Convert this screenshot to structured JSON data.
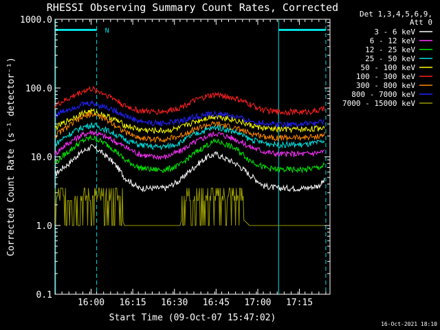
{
  "chart_data": {
    "type": "line",
    "title": "RHESSI Observing Summary Count Rates, Corrected",
    "xlabel": "Start Time (09-Oct-07 15:47:02)",
    "ylabel": "Corrected Count Rate (s⁻¹ detector⁻¹)",
    "yscale": "log",
    "ylim": [
      0.1,
      1000
    ],
    "xlim": [
      "15:47",
      "17:26"
    ],
    "y_tick_labels": [
      "0.1",
      "1.0",
      "10.0",
      "100.0",
      "1000.0"
    ],
    "y_ticks": [
      0.1,
      1,
      10,
      100,
      1000
    ],
    "x_tick_labels": [
      "16:00",
      "16:15",
      "16:30",
      "16:45",
      "17:00",
      "17:15"
    ],
    "x_ticks_min": [
      13,
      28,
      43,
      58,
      73,
      88
    ],
    "legend_header": [
      "Det 1,3,4,5,6,9,",
      "Att 0"
    ],
    "legend_position": "right",
    "timestamp": "16-Oct-2021 18:10",
    "annotations": [
      {
        "text": "N",
        "x_min": 17
      }
    ],
    "night_bars": [
      {
        "x_start_min": 0.2,
        "x_end_min": 15,
        "y": 700,
        "color": "#00e0e0"
      },
      {
        "x_start_min": 80.5,
        "x_end_min": 97.5,
        "y": 700,
        "color": "#00e0e0"
      }
    ],
    "vlines": [
      {
        "x_min": 0.2,
        "style": "solid",
        "color": "#00e0e0"
      },
      {
        "x_min": 15,
        "style": "dashed",
        "color": "#00e0e0"
      },
      {
        "x_min": 80.5,
        "style": "solid",
        "color": "#00e0e0"
      },
      {
        "x_min": 97.5,
        "style": "dashed",
        "color": "#00e0e0"
      }
    ],
    "x_min": [
      0,
      5,
      10,
      13,
      15,
      20,
      25,
      30,
      35,
      40,
      45,
      50,
      55,
      58,
      60,
      65,
      70,
      75,
      80,
      85,
      90,
      95,
      97
    ],
    "series": [
      {
        "name": "3 - 6 keV",
        "color": "#ffffff",
        "values": [
          5.5,
          8,
          12,
          14,
          13,
          9,
          5,
          3.5,
          3.5,
          3.5,
          4.5,
          7,
          10,
          11,
          10,
          8,
          5.5,
          3.8,
          3.5,
          3.5,
          3.5,
          3.8,
          4.5
        ]
      },
      {
        "name": "6 - 12 keV",
        "color": "#ff33ff",
        "values": [
          11,
          16,
          21,
          23,
          22,
          18,
          14,
          11,
          10,
          10,
          12,
          16,
          20,
          22,
          21,
          18,
          14,
          12,
          11,
          11,
          11,
          11.5,
          12
        ]
      },
      {
        "name": "12 - 25 keV",
        "color": "#00ee00",
        "values": [
          8,
          12,
          17,
          19,
          18,
          14,
          9,
          7,
          6.5,
          6.5,
          7.5,
          11,
          15,
          17,
          16,
          13,
          9,
          7,
          6.5,
          6.5,
          6.5,
          7,
          7.5
        ]
      },
      {
        "name": "25 - 50 keV",
        "color": "#00e0e0",
        "values": [
          15,
          21,
          27,
          29,
          28,
          23,
          18,
          15,
          14,
          14,
          16,
          21,
          25,
          27,
          26,
          23,
          18,
          16,
          15,
          15,
          15,
          16,
          17
        ]
      },
      {
        "name": "50 - 100 keV",
        "color": "#ffff00",
        "values": [
          26,
          34,
          43,
          46,
          44,
          37,
          29,
          25,
          24,
          24,
          26,
          32,
          37,
          39,
          38,
          34,
          29,
          26,
          25,
          25,
          25,
          26,
          27
        ]
      },
      {
        "name": "100 - 300 keV",
        "color": "#ff2020",
        "values": [
          55,
          70,
          90,
          97,
          92,
          75,
          55,
          47,
          45,
          46,
          52,
          65,
          76,
          80,
          78,
          70,
          58,
          48,
          45,
          45,
          45,
          47,
          50
        ]
      },
      {
        "name": "300 - 800 keV",
        "color": "#ff8800",
        "values": [
          20,
          28,
          38,
          42,
          40,
          32,
          23,
          19,
          18,
          18,
          20,
          25,
          29,
          30,
          29,
          26,
          22,
          20,
          19,
          19,
          19,
          20,
          21
        ]
      },
      {
        "name": "800 - 7000 keV",
        "color": "#2222ff",
        "values": [
          40,
          50,
          58,
          60,
          58,
          50,
          40,
          33,
          31,
          31,
          33,
          38,
          41,
          42,
          42,
          38,
          33,
          31,
          30,
          30,
          30,
          31,
          33
        ]
      },
      {
        "name": "7000 - 15000 keV",
        "color": "#999900",
        "values": [
          2.3,
          2.8,
          3.5,
          3.5,
          3.2,
          2.4,
          1,
          1,
          1,
          1,
          1,
          2.7,
          3,
          3,
          2.5,
          1.5,
          1,
          1,
          1,
          1,
          1,
          1,
          1
        ]
      }
    ]
  }
}
